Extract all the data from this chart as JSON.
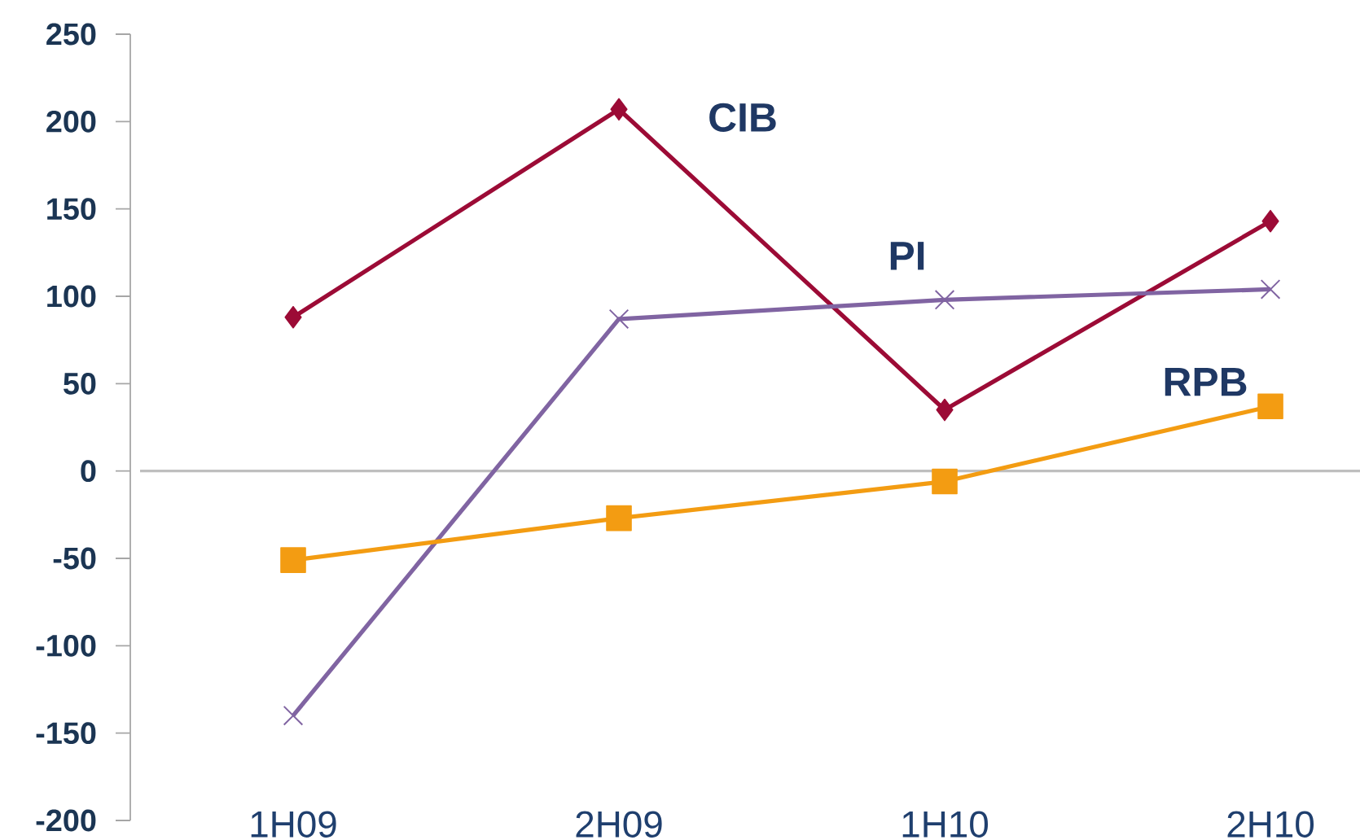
{
  "chart_data": {
    "type": "line",
    "categories": [
      "1H09",
      "2H09",
      "1H10",
      "2H10"
    ],
    "series": [
      {
        "name": "CIB",
        "color": "#9c0b36",
        "marker": "diamond",
        "values": [
          88,
          207,
          35,
          143
        ]
      },
      {
        "name": "PI",
        "color": "#8064a2",
        "marker": "cross",
        "values": [
          -140,
          87,
          98,
          104
        ]
      },
      {
        "name": "RPB",
        "color": "#f39c12",
        "marker": "square",
        "values": [
          -51,
          -27,
          -6,
          37
        ]
      }
    ],
    "ylim": [
      -200,
      250
    ],
    "yticks": [
      -200,
      -150,
      -100,
      -50,
      0,
      50,
      100,
      150,
      200,
      250
    ],
    "ref_lines": [
      {
        "axis": "y",
        "value": 0,
        "color": "#bfbfbf"
      }
    ]
  }
}
